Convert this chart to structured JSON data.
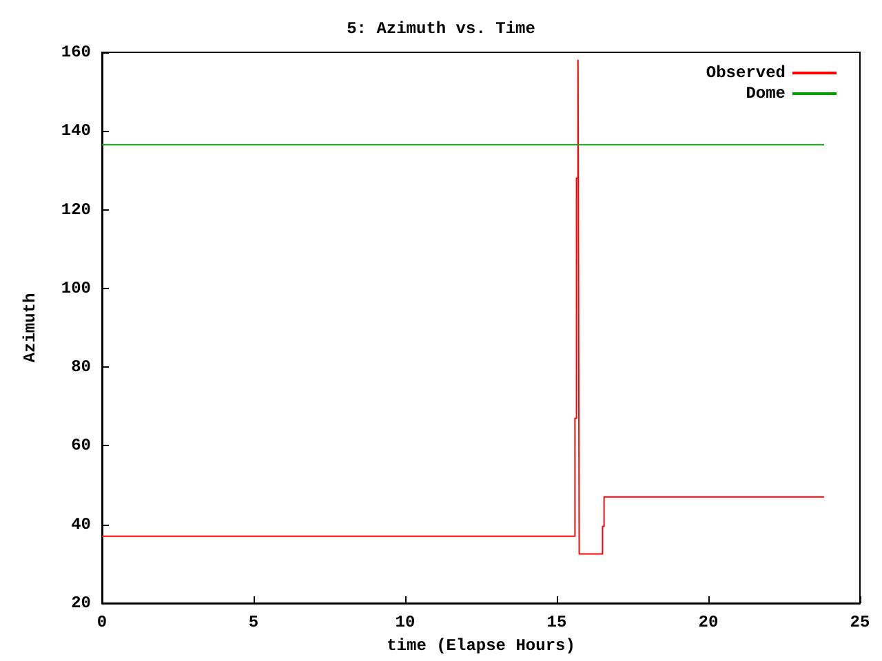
{
  "chart_data": {
    "type": "step",
    "title": "5: Azimuth vs. Time",
    "xlabel": "time (Elapse Hours)",
    "ylabel": "Azimuth",
    "xlim": [
      0,
      25
    ],
    "xticks": [
      0,
      5,
      10,
      15,
      20,
      25
    ],
    "ylim": [
      20,
      160
    ],
    "yticks": [
      20,
      40,
      60,
      80,
      100,
      120,
      140,
      160
    ],
    "grid": false,
    "legend": "top right",
    "series": [
      {
        "name": "Observed",
        "color": "#ff0000",
        "x": [
          0,
          15.6,
          15.65,
          15.7,
          15.72,
          15.74,
          16.51,
          16.56,
          23.82
        ],
        "values": [
          37,
          67,
          128,
          158,
          95,
          32.5,
          39.5,
          47,
          47
        ]
      },
      {
        "name": "Dome",
        "color": "#00a000",
        "x": [
          0,
          23.82
        ],
        "values": [
          136.5,
          136.5
        ]
      }
    ]
  }
}
